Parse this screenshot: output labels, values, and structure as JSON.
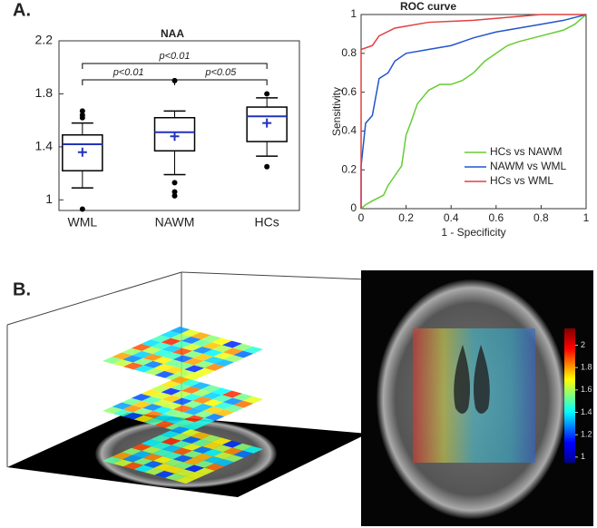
{
  "panel_labels": [
    "A.",
    "B."
  ],
  "chart_data": [
    {
      "type": "box",
      "title": "NAA",
      "categories": [
        "WML",
        "NAWM",
        "HCs"
      ],
      "boxes": [
        {
          "min": 1.09,
          "q1": 1.22,
          "median": 1.42,
          "q3": 1.49,
          "max": 1.58,
          "mean": 1.36,
          "outliers": [
            1.62,
            1.64,
            1.67,
            0.93
          ]
        },
        {
          "min": 1.19,
          "q1": 1.37,
          "median": 1.51,
          "q3": 1.62,
          "max": 1.67,
          "mean": 1.48,
          "outliers": [
            1.9,
            1.13,
            1.06,
            1.03
          ]
        },
        {
          "min": 1.33,
          "q1": 1.44,
          "median": 1.63,
          "q3": 1.7,
          "max": 1.77,
          "mean": 1.58,
          "outliers": [
            1.8,
            1.25
          ]
        }
      ],
      "annotations": [
        "p<0.01",
        "p<0.01",
        "p<0.05"
      ],
      "ylim": [
        0.92,
        2.2
      ],
      "yticks": [
        1,
        1.4,
        1.8,
        2.2
      ]
    },
    {
      "type": "line",
      "title": "ROC curve",
      "xlabel": "1 - Specificity",
      "ylabel": "Sensitivity",
      "xlim": [
        0,
        1
      ],
      "ylim": [
        0,
        1
      ],
      "xticks": [
        0,
        0.2,
        0.4,
        0.6,
        0.8,
        1
      ],
      "yticks": [
        0,
        0.2,
        0.4,
        0.6,
        0.8,
        1
      ],
      "legend": "lower right",
      "series": [
        {
          "name": "HCs vs NAWM",
          "color": "#66cc33",
          "x": [
            0,
            0.02,
            0.05,
            0.1,
            0.12,
            0.15,
            0.18,
            0.2,
            0.22,
            0.25,
            0.3,
            0.35,
            0.4,
            0.45,
            0.5,
            0.55,
            0.6,
            0.65,
            0.7,
            0.8,
            0.9,
            0.95,
            1
          ],
          "values": [
            0,
            0.02,
            0.04,
            0.07,
            0.12,
            0.17,
            0.22,
            0.38,
            0.44,
            0.54,
            0.61,
            0.64,
            0.64,
            0.66,
            0.7,
            0.76,
            0.8,
            0.84,
            0.86,
            0.89,
            0.92,
            0.95,
            1
          ]
        },
        {
          "name": "NAWM vs WML",
          "color": "#2255cc",
          "x": [
            0,
            0,
            0.02,
            0.05,
            0.08,
            0.12,
            0.15,
            0.2,
            0.3,
            0.4,
            0.5,
            0.6,
            0.7,
            0.8,
            0.9,
            1
          ],
          "values": [
            0,
            0.22,
            0.44,
            0.48,
            0.67,
            0.7,
            0.76,
            0.8,
            0.82,
            0.84,
            0.88,
            0.91,
            0.93,
            0.95,
            0.97,
            1
          ]
        },
        {
          "name": "HCs vs WML",
          "color": "#e04040",
          "x": [
            0,
            0,
            0.05,
            0.08,
            0.15,
            0.3,
            0.5,
            0.7,
            0.8,
            1
          ],
          "values": [
            0,
            0.82,
            0.84,
            0.89,
            0.93,
            0.96,
            0.97,
            0.99,
            1,
            1
          ]
        }
      ]
    },
    {
      "type": "colorbar",
      "clim": [
        0.95,
        2.15
      ],
      "ticks": [
        2,
        1.8,
        1.6,
        1.4,
        1.2,
        1
      ]
    }
  ]
}
